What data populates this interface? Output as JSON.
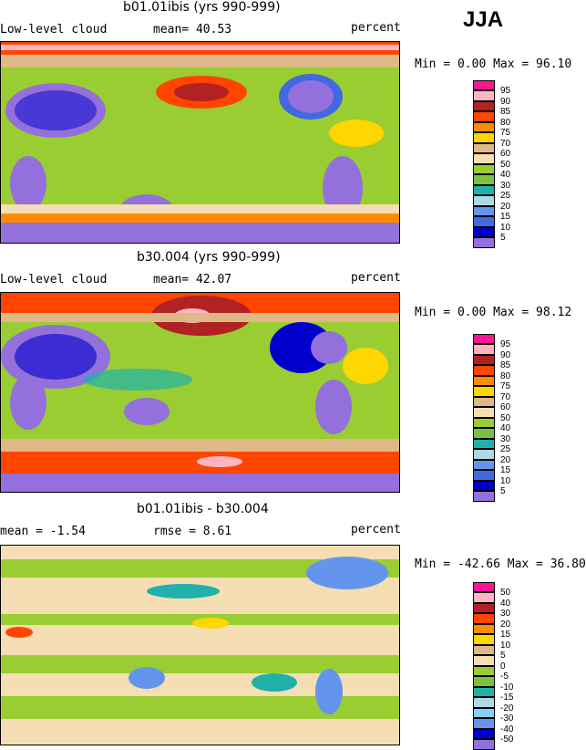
{
  "season": "JJA",
  "panels": [
    {
      "title": "b01.01ibis (yrs 990-999)",
      "left_label": "Low-level cloud",
      "stat1": "mean=  40.53",
      "stat2": "",
      "units": "percent",
      "minmax": "Min =   0.00 Max =  96.10",
      "legend": [
        "95",
        "90",
        "85",
        "80",
        "75",
        "70",
        "60",
        "50",
        "40",
        "30",
        "25",
        "20",
        "15",
        "10",
        "5"
      ],
      "colors": [
        "#ff1493",
        "#ffb6c1",
        "#b22222",
        "#ff4500",
        "#ff8c00",
        "#ffd700",
        "#deb887",
        "#f5deb3",
        "#9acd32",
        "#7cc23c",
        "#20b2aa",
        "#add8e6",
        "#6495ed",
        "#4169e1",
        "#0000cd",
        "#9370db"
      ]
    },
    {
      "title": "b30.004 (yrs 990-999)",
      "left_label": "Low-level cloud",
      "stat1": "mean=  42.07",
      "stat2": "",
      "units": "percent",
      "minmax": "Min =   0.00 Max =  98.12",
      "legend": [
        "95",
        "90",
        "85",
        "80",
        "75",
        "70",
        "60",
        "50",
        "40",
        "30",
        "25",
        "20",
        "15",
        "10",
        "5"
      ],
      "colors": [
        "#ff1493",
        "#ffb6c1",
        "#b22222",
        "#ff4500",
        "#ff8c00",
        "#ffd700",
        "#deb887",
        "#f5deb3",
        "#9acd32",
        "#7cc23c",
        "#20b2aa",
        "#add8e6",
        "#6495ed",
        "#4169e1",
        "#0000cd",
        "#9370db"
      ]
    },
    {
      "title": "b01.01ibis - b30.004",
      "left_label": "mean =  -1.54",
      "stat1": "",
      "stat2": "rmse =   8.61",
      "units": "percent",
      "minmax": "Min = -42.66 Max =  36.80",
      "legend": [
        "50",
        "40",
        "30",
        "20",
        "15",
        "10",
        "5",
        "0",
        "-5",
        "-10",
        "-15",
        "-20",
        "-30",
        "-40",
        "-50"
      ],
      "colors": [
        "#ff1493",
        "#ffb6c1",
        "#b22222",
        "#ff4500",
        "#ff8c00",
        "#ffd700",
        "#deb887",
        "#f5deb3",
        "#9acd32",
        "#7cc23c",
        "#20b2aa",
        "#add8e6",
        "#87cefa",
        "#6495ed",
        "#0000cd",
        "#9370db"
      ]
    }
  ]
}
